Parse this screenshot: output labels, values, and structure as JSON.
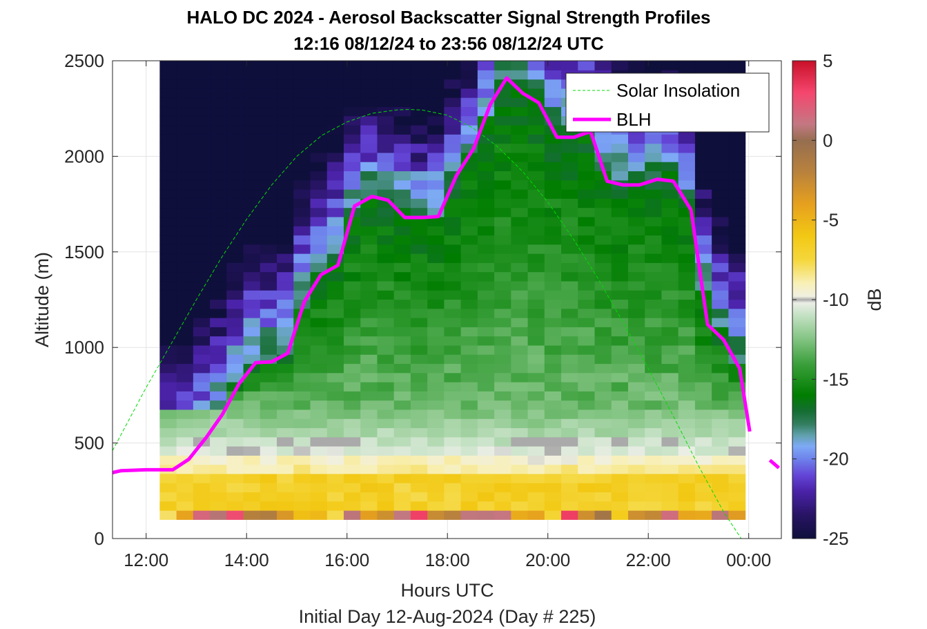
{
  "chart_data": {
    "type": "heatmap",
    "title": "HALO DC 2024 - Aerosol Backscatter Signal Strength Profiles",
    "subtitle": "12:16 08/12/24 to 23:56 08/12/24  UTC",
    "xlabel": "Hours UTC",
    "xlabel2": "Initial Day 12-Aug-2024 (Day # 225)",
    "ylabel": "Altitude (m)",
    "colorbar_label": "dB",
    "xlim": [
      11.33,
      24.65
    ],
    "ylim": [
      0,
      2500
    ],
    "x_ticks": [
      12,
      14,
      16,
      18,
      20,
      22,
      24
    ],
    "x_tick_labels": [
      "12:00",
      "14:00",
      "16:00",
      "18:00",
      "20:00",
      "22:00",
      "00:00"
    ],
    "y_ticks": [
      0,
      500,
      1000,
      1500,
      2000,
      2500
    ],
    "y_tick_labels": [
      "0",
      "500",
      "1000",
      "1500",
      "2000",
      "2500"
    ],
    "clim": [
      -25,
      5
    ],
    "c_ticks": [
      5,
      0,
      -5,
      -10,
      -15,
      -20,
      -25
    ],
    "c_tick_labels": [
      "5",
      "0",
      "-5",
      "-10",
      "-15",
      "-20",
      "-25"
    ],
    "grid": true,
    "legend_position": "top-right",
    "heatmap": {
      "x_start": 12.27,
      "x_end": 23.93,
      "n_cols": 35,
      "alt_bottom": 100,
      "alt_top": 2500,
      "n_rows": 50,
      "note": "cell values in dB follow the layered profile visible in the figure"
    },
    "series": [
      {
        "name": "Solar Insolation",
        "color": "#00dd00",
        "style": "dashed",
        "x": [
          11.33,
          12.0,
          12.5,
          13.0,
          13.5,
          14.0,
          14.5,
          15.0,
          15.5,
          16.0,
          16.5,
          17.0,
          17.25,
          17.5,
          18.0,
          18.5,
          19.0,
          19.5,
          20.0,
          20.5,
          21.0,
          21.5,
          22.0,
          22.5,
          23.0,
          23.5,
          24.0,
          24.1,
          24.65
        ],
        "y": [
          460,
          790,
          1020,
          1250,
          1470,
          1670,
          1850,
          2000,
          2110,
          2180,
          2225,
          2243,
          2245,
          2242,
          2215,
          2150,
          2050,
          1920,
          1760,
          1570,
          1360,
          1130,
          890,
          640,
          380,
          140,
          -60,
          0,
          0
        ]
      },
      {
        "name": "BLH",
        "color": "#ff00ff",
        "style": "solid",
        "x": [
          11.33,
          11.5,
          12.0,
          12.53,
          12.85,
          13.2,
          13.52,
          13.85,
          14.18,
          14.5,
          14.82,
          15.15,
          15.48,
          15.82,
          16.15,
          16.5,
          16.82,
          17.15,
          17.5,
          17.82,
          18.18,
          18.52,
          18.85,
          19.18,
          19.5,
          19.82,
          20.18,
          20.52,
          20.85,
          21.18,
          21.5,
          21.82,
          22.18,
          22.5,
          22.85,
          23.18,
          23.5,
          23.82,
          24.02
        ],
        "y": [
          345,
          355,
          360,
          360,
          415,
          530,
          650,
          810,
          920,
          925,
          970,
          1240,
          1380,
          1430,
          1740,
          1790,
          1770,
          1680,
          1680,
          1685,
          1900,
          2040,
          2270,
          2410,
          2330,
          2280,
          2100,
          2100,
          2130,
          1870,
          1850,
          1850,
          1880,
          1870,
          1720,
          1120,
          1040,
          890,
          560
        ],
        "extra_segment": {
          "x": [
            24.42,
            24.6
          ],
          "y": [
            410,
            370
          ]
        }
      }
    ]
  }
}
